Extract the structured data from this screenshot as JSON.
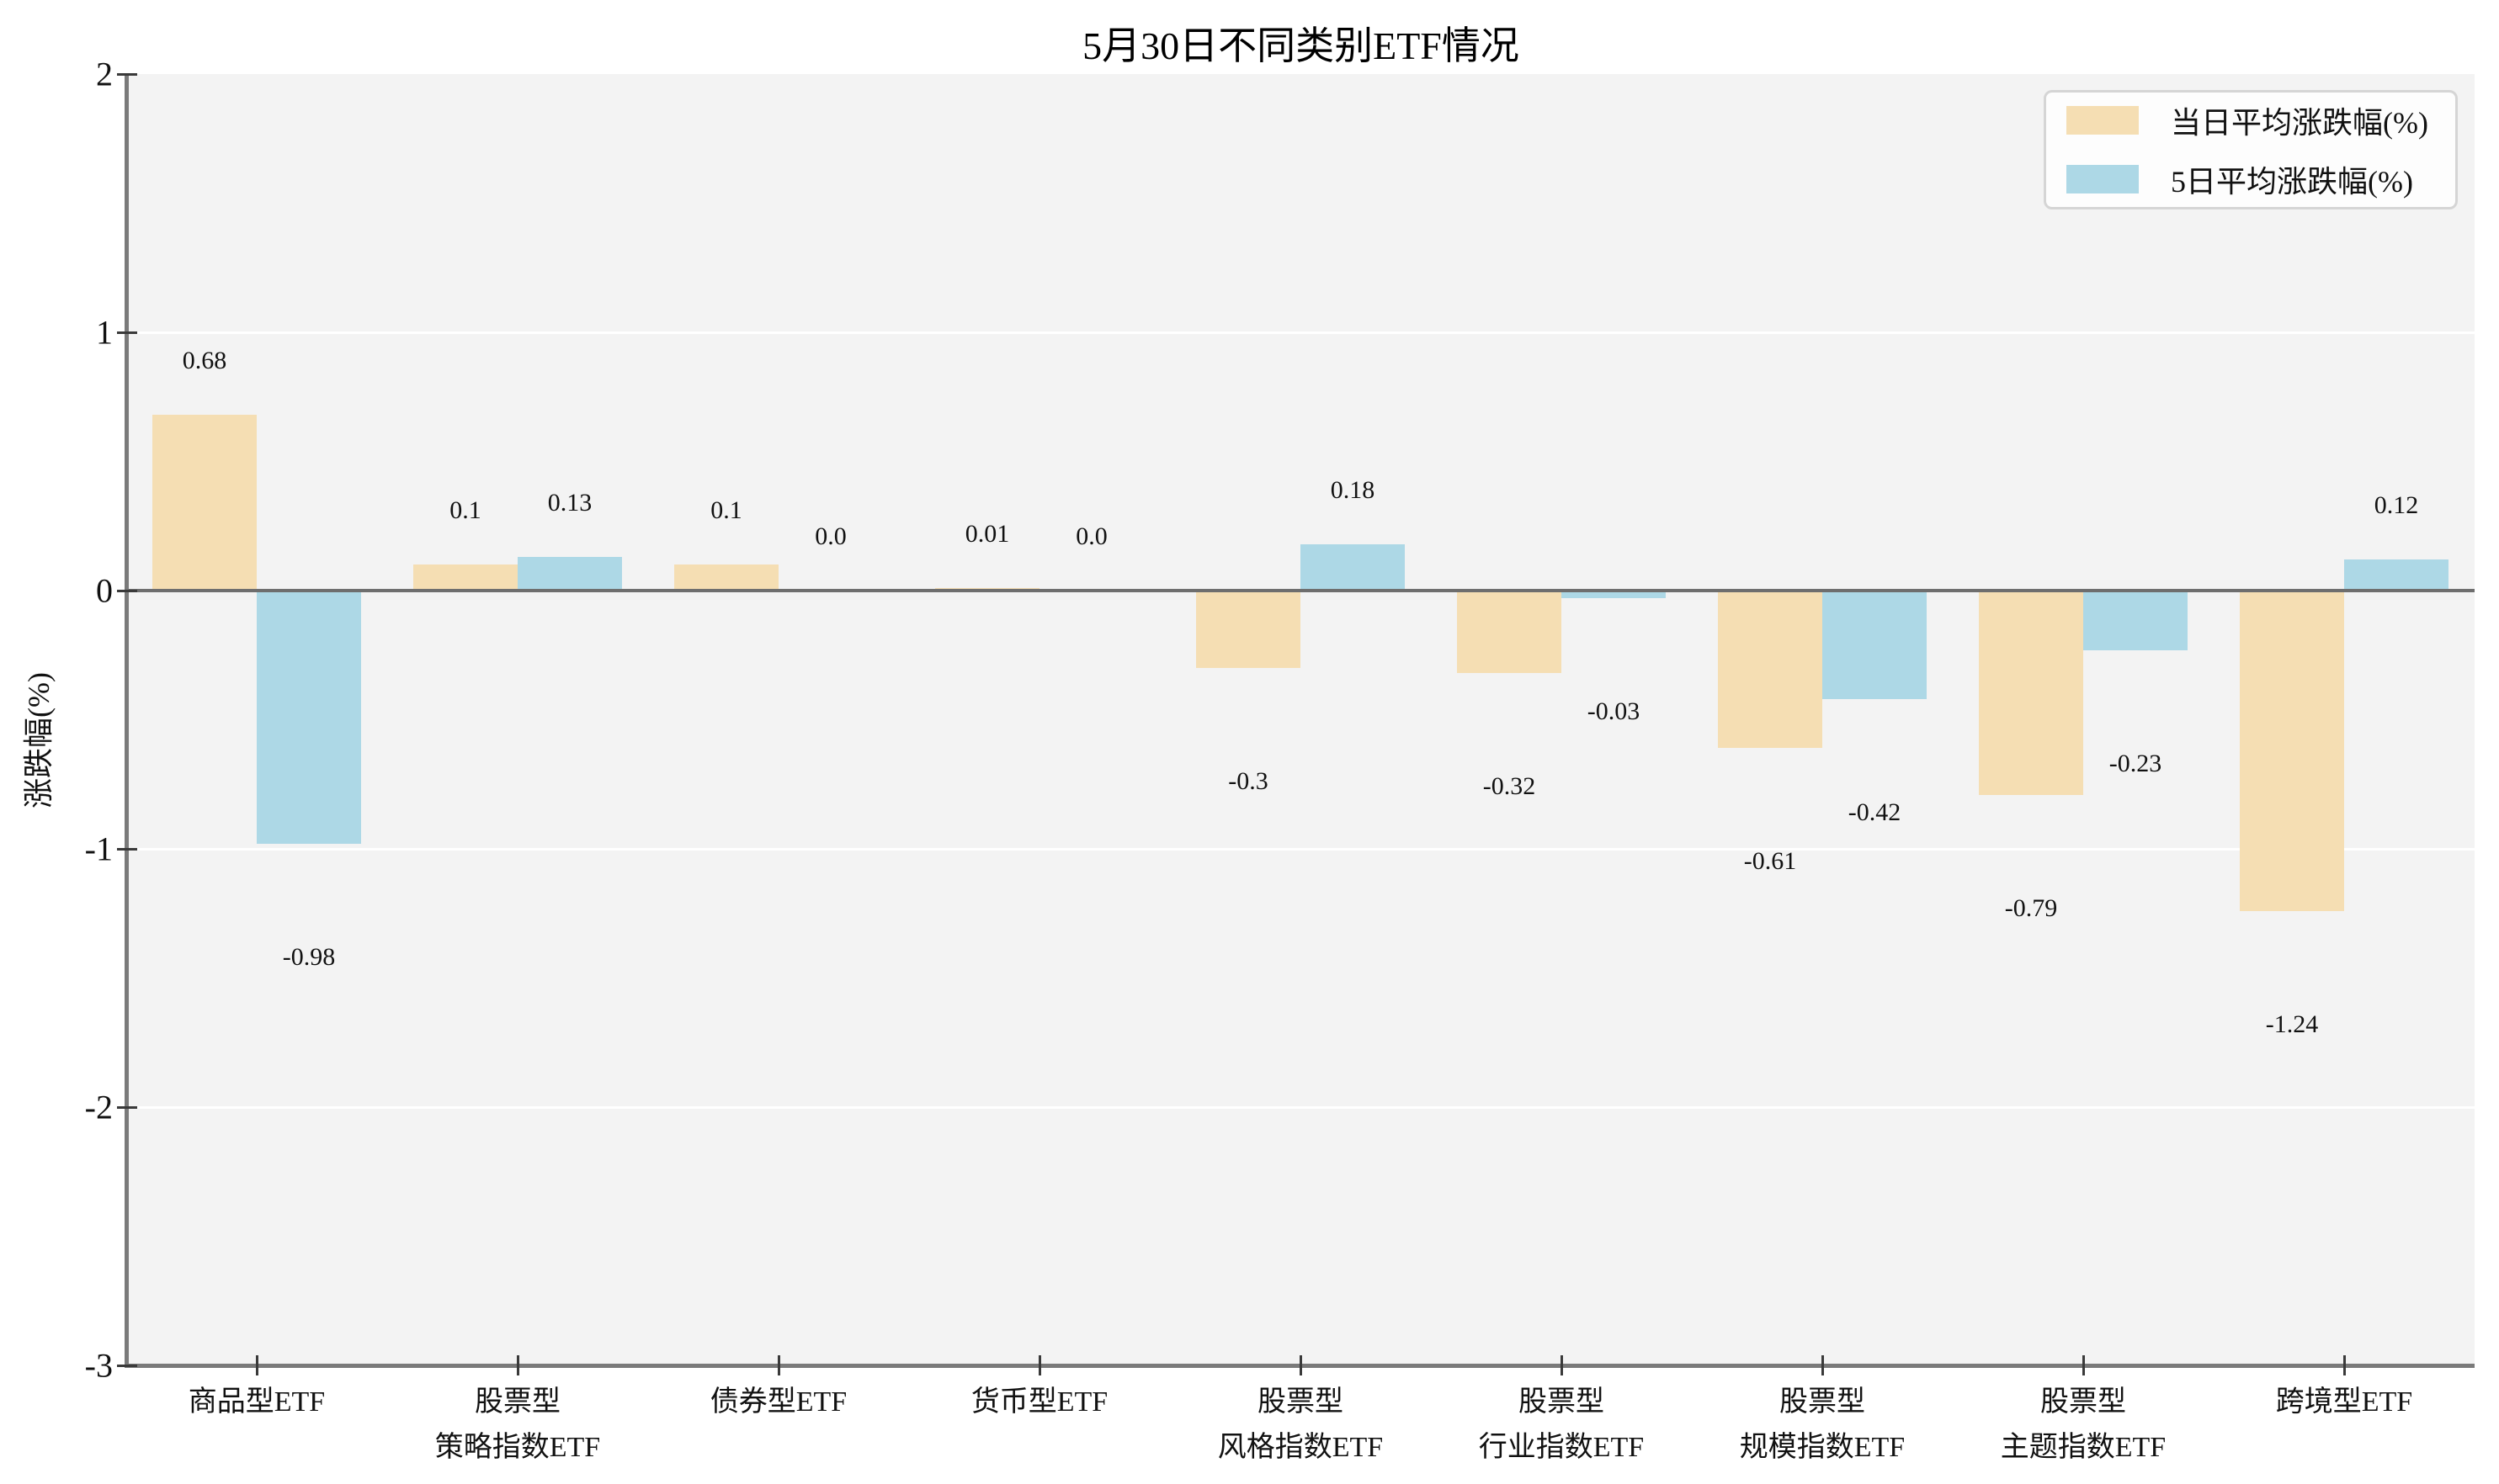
{
  "title": "5月30日不同类别ETF情况",
  "y_axis": {
    "label": "涨跌幅(%)",
    "tick_labels": [
      "2",
      "1",
      "0",
      "-1",
      "-2",
      "-3"
    ],
    "tick_values": [
      2,
      1,
      0,
      -1,
      -2,
      -3
    ]
  },
  "legend": {
    "items": [
      {
        "label": "当日平均涨跌幅(%)",
        "color": "#F5DEB3"
      },
      {
        "label": "5日平均涨跌幅(%)",
        "color": "#ADD8E6"
      }
    ]
  },
  "colors": {
    "day_series": "#F5DEB3",
    "five_day_series": "#ADD8E6",
    "plot_background": "#F3F3F3",
    "gridline": "#FFFFFF",
    "axis_line": "#7A7A7A",
    "zero_line": "#6E6E6E"
  },
  "chart_data": {
    "type": "bar",
    "title": "5月30日不同类别ETF情况",
    "xlabel": "",
    "ylabel": "涨跌幅(%)",
    "ylim": [
      -3,
      2
    ],
    "grid": "horizontal-white-on-gray",
    "legend_position": "top-right",
    "categories": [
      "商品型ETF",
      "股票型\n策略指数ETF",
      "债券型ETF",
      "货币型ETF",
      "股票型\n风格指数ETF",
      "股票型\n行业指数ETF",
      "股票型\n规模指数ETF",
      "股票型\n主题指数ETF",
      "跨境型ETF"
    ],
    "series": [
      {
        "name": "当日平均涨跌幅(%)",
        "color": "#F5DEB3",
        "values": [
          0.68,
          0.1,
          0.1,
          0.01,
          -0.3,
          -0.32,
          -0.61,
          -0.79,
          -1.24
        ]
      },
      {
        "name": "5日平均涨跌幅(%)",
        "color": "#ADD8E6",
        "values": [
          -0.98,
          0.13,
          0.0,
          0.0,
          0.18,
          -0.03,
          -0.42,
          -0.23,
          0.12
        ]
      }
    ],
    "value_labels": [
      [
        "0.68",
        "0.1",
        "0.1",
        "0.01",
        "-0.3",
        "-0.32",
        "-0.61",
        "-0.79",
        "-1.24"
      ],
      [
        "-0.98",
        "0.13",
        "0.0",
        "0.0",
        "0.18",
        "-0.03",
        "-0.42",
        "-0.23",
        "0.12"
      ]
    ]
  }
}
